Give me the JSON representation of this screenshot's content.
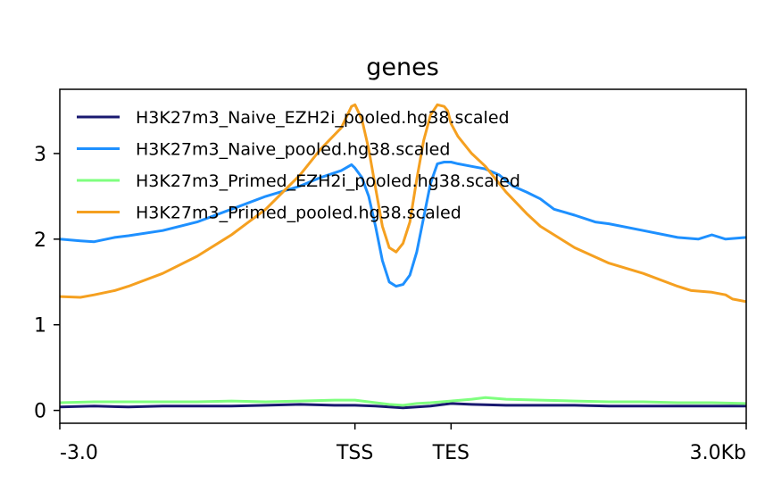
{
  "chart_data": {
    "type": "line",
    "title": "genes",
    "xlabel": "",
    "ylabel": "",
    "xlim": [
      0,
      100
    ],
    "ylim": [
      -0.15,
      3.75
    ],
    "x_ticks": [
      {
        "value": 0,
        "label": "-3.0"
      },
      {
        "value": 43,
        "label": "TSS"
      },
      {
        "value": 57,
        "label": "TES"
      },
      {
        "value": 100,
        "label": "3.0Kb"
      }
    ],
    "y_ticks": [
      {
        "value": 0,
        "label": "0"
      },
      {
        "value": 1,
        "label": "1"
      },
      {
        "value": 2,
        "label": "2"
      },
      {
        "value": 3,
        "label": "3"
      }
    ],
    "grid": false,
    "legend_position": "top-left",
    "series": [
      {
        "name": "H3K27m3_Naive_EZH2i_pooled.hg38.scaled",
        "color": "#191970",
        "x": [
          0,
          5,
          10,
          15,
          20,
          25,
          30,
          35,
          40,
          43,
          46,
          48,
          50,
          52,
          54,
          57,
          60,
          65,
          70,
          75,
          80,
          85,
          90,
          95,
          100
        ],
        "y": [
          0.04,
          0.05,
          0.04,
          0.05,
          0.05,
          0.05,
          0.06,
          0.07,
          0.06,
          0.06,
          0.05,
          0.04,
          0.03,
          0.04,
          0.05,
          0.08,
          0.07,
          0.06,
          0.06,
          0.06,
          0.05,
          0.05,
          0.05,
          0.05,
          0.05
        ]
      },
      {
        "name": "H3K27m3_Naive_pooled.hg38.scaled",
        "color": "#1e90ff",
        "x": [
          0,
          3,
          5,
          8,
          10,
          15,
          20,
          25,
          30,
          35,
          38,
          41,
          42.5,
          43,
          44,
          45,
          46,
          47,
          48,
          49,
          50,
          51,
          52,
          53,
          54,
          55,
          56,
          57,
          58,
          60,
          62,
          64,
          66,
          68,
          70,
          72,
          75,
          78,
          80,
          85,
          90,
          93,
          95,
          97,
          100
        ],
        "y": [
          2.0,
          1.98,
          1.97,
          2.02,
          2.04,
          2.1,
          2.2,
          2.35,
          2.5,
          2.62,
          2.72,
          2.8,
          2.87,
          2.83,
          2.72,
          2.5,
          2.15,
          1.75,
          1.5,
          1.45,
          1.47,
          1.58,
          1.85,
          2.25,
          2.65,
          2.88,
          2.9,
          2.9,
          2.88,
          2.85,
          2.82,
          2.75,
          2.62,
          2.55,
          2.47,
          2.35,
          2.28,
          2.2,
          2.18,
          2.1,
          2.02,
          2.0,
          2.05,
          2.0,
          2.02
        ]
      },
      {
        "name": "H3K27m3_Primed_EZH2i_pooled.hg38.scaled",
        "color": "#7fff7f",
        "x": [
          0,
          5,
          10,
          15,
          20,
          25,
          30,
          35,
          40,
          43,
          46,
          48,
          50,
          52,
          54,
          57,
          60,
          62,
          65,
          70,
          75,
          80,
          85,
          90,
          95,
          100
        ],
        "y": [
          0.09,
          0.1,
          0.1,
          0.1,
          0.1,
          0.11,
          0.1,
          0.11,
          0.12,
          0.12,
          0.09,
          0.07,
          0.06,
          0.08,
          0.09,
          0.11,
          0.13,
          0.15,
          0.13,
          0.12,
          0.11,
          0.1,
          0.1,
          0.09,
          0.09,
          0.08
        ]
      },
      {
        "name": "H3K27m3_Primed_pooled.hg38.scaled",
        "color": "#f5a020",
        "x": [
          0,
          3,
          5,
          8,
          10,
          15,
          20,
          25,
          30,
          35,
          38,
          41,
          42.5,
          43,
          44,
          45,
          46,
          47,
          48,
          49,
          50,
          51,
          52,
          53,
          54,
          55,
          56,
          56.5,
          57,
          58,
          60,
          62,
          65,
          68,
          70,
          75,
          80,
          85,
          90,
          92,
          95,
          97,
          98,
          100
        ],
        "y": [
          1.33,
          1.32,
          1.35,
          1.4,
          1.45,
          1.6,
          1.8,
          2.05,
          2.35,
          2.75,
          3.05,
          3.3,
          3.55,
          3.57,
          3.4,
          3.05,
          2.6,
          2.15,
          1.9,
          1.85,
          1.95,
          2.2,
          2.7,
          3.15,
          3.45,
          3.57,
          3.55,
          3.5,
          3.35,
          3.2,
          3.0,
          2.85,
          2.55,
          2.3,
          2.15,
          1.9,
          1.72,
          1.6,
          1.45,
          1.4,
          1.38,
          1.35,
          1.3,
          1.27
        ]
      }
    ]
  }
}
